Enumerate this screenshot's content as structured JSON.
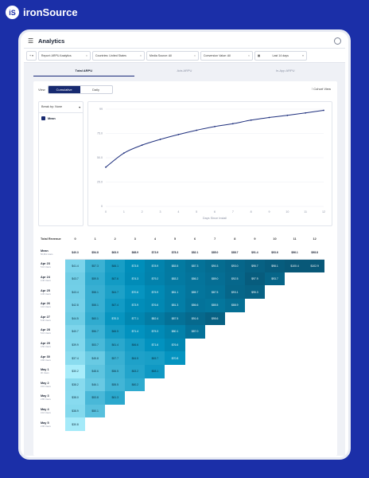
{
  "brand": {
    "badge": "iS",
    "name": "ironSource"
  },
  "app": {
    "title": "Analytics"
  },
  "filters": {
    "add_icon": "+",
    "items": [
      "Report: ARPU Analytics",
      "Countries: United States",
      "Media Source: All",
      "Conversion Value: All"
    ],
    "date": "Last 14 days"
  },
  "tabs": [
    "Total ARPU",
    "Ads ARPU",
    "In-App ARPU"
  ],
  "view": {
    "label": "View",
    "options": [
      "Cumulative",
      "Daily"
    ],
    "selected": "Cumulative",
    "cohort_view": "Cohort View"
  },
  "group": {
    "label": "Break by: None",
    "mean": "Mean"
  },
  "chart_data": {
    "type": "line",
    "xlabel": "Days Since Install",
    "ylabel": "",
    "x": [
      0,
      1,
      2,
      3,
      4,
      5,
      6,
      7,
      8,
      9,
      10,
      11,
      12
    ],
    "y": [
      40.3,
      54.8,
      63.0,
      68.9,
      73.9,
      78.3,
      82.1,
      85.0,
      88.7,
      91.4,
      93.6,
      96.1,
      98.8
    ],
    "ylim": [
      0,
      100
    ],
    "yticks": [
      "0",
      "25.0",
      "50.0",
      "75.0",
      "99"
    ],
    "xticks": [
      "0",
      "1",
      "2",
      "3",
      "4",
      "5",
      "6",
      "7",
      "8",
      "9",
      "10",
      "11",
      "12"
    ],
    "color": "#1e2f7d",
    "grid": true
  },
  "table": {
    "corner": "Total Revenue",
    "days": [
      "0",
      "1",
      "2",
      "3",
      "4",
      "5",
      "6",
      "7",
      "8",
      "9",
      "10",
      "11",
      "12"
    ],
    "mean": {
      "label": "Mean",
      "sub": "50,361 Users",
      "values": [
        "$40.3",
        "$54.8",
        "$63.0",
        "$68.9",
        "$73.9",
        "$78.3",
        "$82.1",
        "$85.0",
        "$88.7",
        "$91.4",
        "$93.6",
        "$96.1",
        "$98.8"
      ]
    },
    "rows": [
      {
        "label": "Apr 23",
        "sub": "5.1K Users",
        "values": [
          "$41.4",
          "$57.3",
          "$66.1",
          "$73.5",
          "$78.9",
          "$83.5",
          "$87.3",
          "$90.3",
          "$93.0",
          "$95.7",
          "$98.1",
          "$100.4",
          "$102.9"
        ]
      },
      {
        "label": "Apr 24",
        "sub": "4.4K Users",
        "values": [
          "$43.7",
          "$59.5",
          "$67.6",
          "$74.3",
          "$79.2",
          "$83.2",
          "$86.2",
          "$89.0",
          "$92.5",
          "$97.9",
          "$93.7"
        ]
      },
      {
        "label": "Apr 25",
        "sub": "4.3K Users",
        "values": [
          "$43.4",
          "$58.1",
          "$64.7",
          "$70.6",
          "$75.9",
          "$81.1",
          "$85.7",
          "$87.5",
          "$93.1",
          "$95.3"
        ]
      },
      {
        "label": "Apr 26",
        "sub": "4.1K Users",
        "values": [
          "$42.8",
          "$58.1",
          "$67.4",
          "$73.9",
          "$76.6",
          "$81.3",
          "$86.6",
          "$85.5",
          "$88.9"
        ]
      },
      {
        "label": "Apr 27",
        "sub": "5.4K Users",
        "values": [
          "$44.5",
          "$60.1",
          "$70.3",
          "$77.1",
          "$82.4",
          "$87.5",
          "$91.6",
          "$95.6"
        ]
      },
      {
        "label": "Apr 28",
        "sub": "5.1K Users",
        "values": [
          "$40.7",
          "$56.7",
          "$66.5",
          "$71.4",
          "$75.3",
          "$80.1",
          "$87.0"
        ]
      },
      {
        "label": "Apr 29",
        "sub": "4.5K Users",
        "values": [
          "$39.9",
          "$53.7",
          "$61.4",
          "$66.6",
          "$71.6",
          "$76.6"
        ]
      },
      {
        "label": "Apr 30",
        "sub": "3.9K Users",
        "values": [
          "$37.4",
          "$45.8",
          "$57.7",
          "$64.5",
          "$65.7",
          "$70.8"
        ]
      },
      {
        "label": "May 1",
        "sub": "3K Users",
        "values": [
          "$30.2",
          "$48.6",
          "$56.5",
          "$63.2",
          "$68.1"
        ]
      },
      {
        "label": "May 2",
        "sub": "3.1K Users",
        "values": [
          "$38.2",
          "$46.1",
          "$55.5",
          "$60.2"
        ]
      },
      {
        "label": "May 3",
        "sub": "2.8K Users",
        "values": [
          "$38.0",
          "$53.8",
          "$61.3"
        ]
      },
      {
        "label": "May 4",
        "sub": "3.1K Users",
        "values": [
          "$38.9",
          "$50.1"
        ]
      },
      {
        "label": "May 5",
        "sub": "2.9K Users",
        "values": [
          "$30.8"
        ]
      }
    ]
  }
}
